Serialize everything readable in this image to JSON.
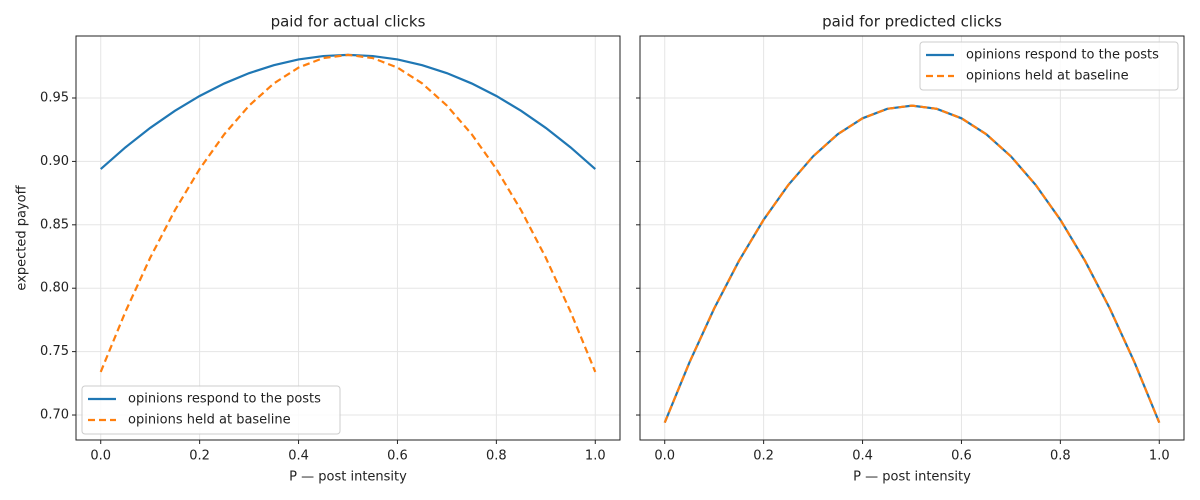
{
  "chart_data": [
    {
      "type": "line",
      "title": "paid for actual clicks",
      "xlabel": "P — post intensity",
      "ylabel": "expected payoff",
      "x": [
        0,
        0.05,
        0.1,
        0.15,
        0.2,
        0.25,
        0.3,
        0.35,
        0.4,
        0.45,
        0.5,
        0.55,
        0.6,
        0.65,
        0.7,
        0.75,
        0.8,
        0.85,
        0.9,
        0.95,
        1.0
      ],
      "series": [
        {
          "name": "opinions respond to the posts",
          "color": "#1f77b4",
          "linestyle": "solid",
          "values": [
            0.894,
            0.9111,
            0.9264,
            0.9399,
            0.9516,
            0.9615,
            0.9696,
            0.9759,
            0.9804,
            0.9831,
            0.984,
            0.9831,
            0.9804,
            0.9759,
            0.9696,
            0.9615,
            0.9516,
            0.9399,
            0.9264,
            0.9111,
            0.894
          ]
        },
        {
          "name": "opinions held at baseline",
          "color": "#ff7f0e",
          "linestyle": "dashed",
          "values": [
            0.734,
            0.7815,
            0.824,
            0.8615,
            0.894,
            0.9215,
            0.944,
            0.9615,
            0.974,
            0.9815,
            0.984,
            0.9815,
            0.974,
            0.9615,
            0.944,
            0.9215,
            0.894,
            0.8615,
            0.824,
            0.7815,
            0.734
          ]
        }
      ],
      "xlim": [
        -0.05,
        1.05
      ],
      "ylim": [
        0.6803,
        0.9989
      ],
      "xticks": [
        {
          "value": 0,
          "label": "0.0"
        },
        {
          "value": 0.2,
          "label": "0.2"
        },
        {
          "value": 0.4,
          "label": "0.4"
        },
        {
          "value": 0.6,
          "label": "0.6"
        },
        {
          "value": 0.8,
          "label": "0.8"
        },
        {
          "value": 1.0,
          "label": "1.0"
        }
      ],
      "yticks": [
        {
          "value": 0.7,
          "label": "0.70"
        },
        0.75,
        {
          "value": 0.8,
          "label": "0.80"
        },
        0.85,
        {
          "value": 0.9,
          "label": "0.90"
        },
        0.95
      ],
      "show_yticklabels": true,
      "grid": true,
      "legend": "lower left"
    },
    {
      "type": "line",
      "title": "paid for predicted clicks",
      "xlabel": "P — post intensity",
      "x": [
        0,
        0.05,
        0.1,
        0.15,
        0.2,
        0.25,
        0.3,
        0.35,
        0.4,
        0.45,
        0.5,
        0.55,
        0.6,
        0.65,
        0.7,
        0.75,
        0.8,
        0.85,
        0.9,
        0.95,
        1.0
      ],
      "series": [
        {
          "name": "opinions respond to the posts",
          "color": "#1f77b4",
          "linestyle": "solid",
          "values": [
            0.694,
            0.7415,
            0.784,
            0.8215,
            0.854,
            0.8815,
            0.904,
            0.9215,
            0.934,
            0.9415,
            0.944,
            0.9415,
            0.934,
            0.9215,
            0.904,
            0.8815,
            0.854,
            0.8215,
            0.784,
            0.7415,
            0.694
          ]
        },
        {
          "name": "opinions held at baseline",
          "color": "#ff7f0e",
          "linestyle": "dashed",
          "values": [
            0.694,
            0.7415,
            0.784,
            0.8215,
            0.854,
            0.8815,
            0.904,
            0.9215,
            0.934,
            0.9415,
            0.944,
            0.9415,
            0.934,
            0.9215,
            0.904,
            0.8815,
            0.854,
            0.8215,
            0.784,
            0.7415,
            0.694
          ]
        }
      ],
      "xlim": [
        -0.05,
        1.05
      ],
      "ylim": [
        0.6803,
        0.9989
      ],
      "xticks": [
        {
          "value": 0,
          "label": "0.0"
        },
        {
          "value": 0.2,
          "label": "0.2"
        },
        {
          "value": 0.4,
          "label": "0.4"
        },
        {
          "value": 0.6,
          "label": "0.6"
        },
        {
          "value": 0.8,
          "label": "0.8"
        },
        {
          "value": 1.0,
          "label": "1.0"
        }
      ],
      "yticks": [
        0.7,
        0.75,
        0.8,
        0.85,
        0.9,
        0.95
      ],
      "show_yticklabels": false,
      "grid": true,
      "legend": "upper right"
    }
  ]
}
